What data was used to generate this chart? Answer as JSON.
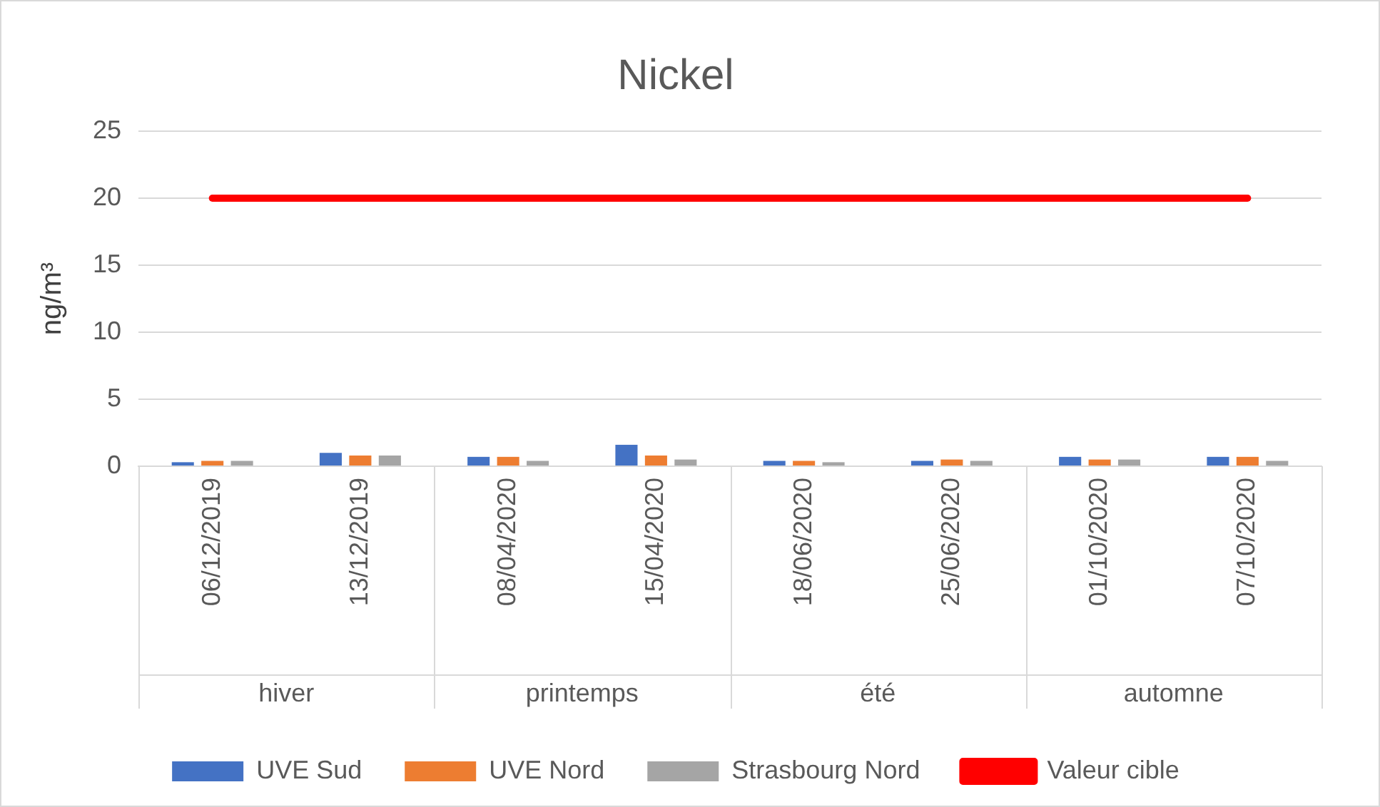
{
  "chart_data": {
    "type": "bar",
    "title": "Nickel",
    "ylabel": "ng/m³",
    "categories": [
      "06/12/2019",
      "13/12/2019",
      "08/04/2020",
      "15/04/2020",
      "18/06/2020",
      "25/06/2020",
      "01/10/2020",
      "07/10/2020"
    ],
    "series": [
      {
        "name": "UVE Sud",
        "color": "#4472c4",
        "values": [
          0.3,
          1.0,
          0.7,
          1.6,
          0.4,
          0.4,
          0.7,
          0.7
        ]
      },
      {
        "name": "UVE Nord",
        "color": "#ed7d31",
        "values": [
          0.4,
          0.8,
          0.7,
          0.8,
          0.4,
          0.5,
          0.5,
          0.7
        ]
      },
      {
        "name": "Strasbourg Nord",
        "color": "#a5a5a5",
        "values": [
          0.4,
          0.8,
          0.4,
          0.5,
          0.3,
          0.4,
          0.5,
          0.4
        ]
      },
      {
        "name": "Valeur cible",
        "type": "line",
        "color": "#ff0000",
        "values": [
          20,
          20,
          20,
          20,
          20,
          20,
          20,
          20
        ]
      }
    ],
    "annotations": [
      "hiver",
      "printemps",
      "été",
      "automne"
    ],
    "ylim": [
      0,
      25
    ],
    "yticks": [
      0,
      5,
      10,
      15,
      20,
      25
    ],
    "grid": "y",
    "legend": "bottom",
    "marker": "none"
  }
}
